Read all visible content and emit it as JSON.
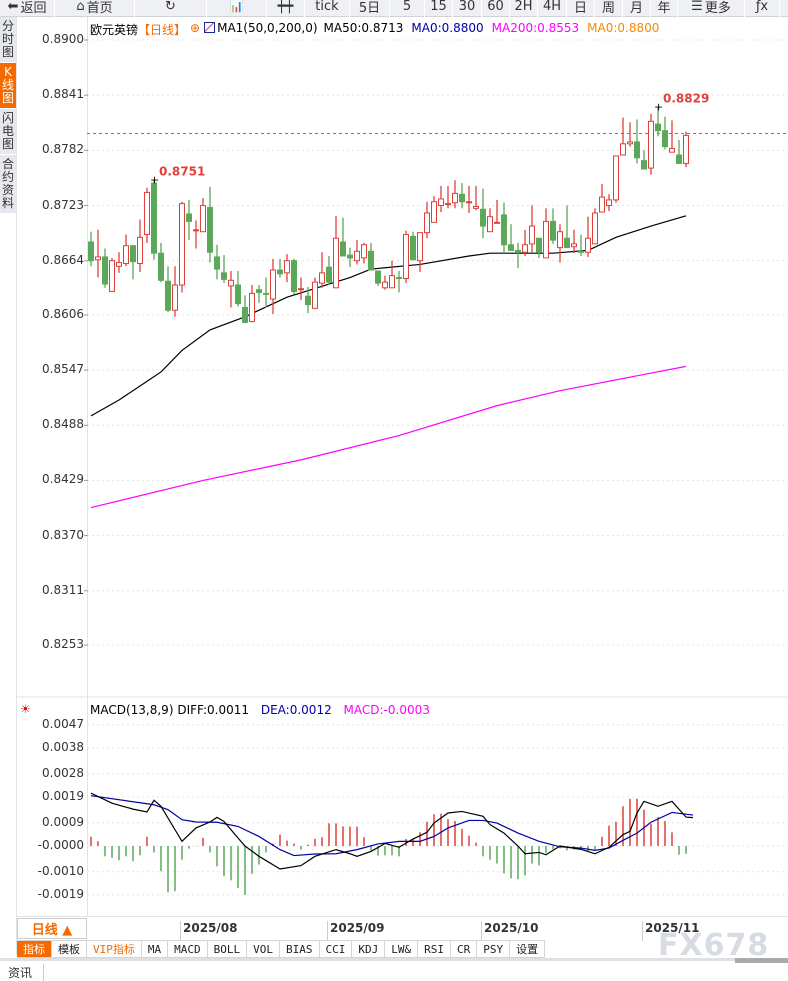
{
  "toolbar": {
    "items": [
      {
        "label": "返回",
        "icon": "back-arrow-icon",
        "w": 55
      },
      {
        "label": "首页",
        "icon": "home-icon",
        "w": 80
      },
      {
        "label": "",
        "icon": "refresh-icon",
        "w": 72
      },
      {
        "label": "",
        "icon": "bar-chart-icon",
        "w": 60
      },
      {
        "label": "",
        "icon": "candlestick-icon",
        "w": 38
      },
      {
        "label": "tick",
        "icon": "",
        "w": 45
      },
      {
        "label": "5日",
        "icon": "",
        "w": 40
      },
      {
        "label": "5",
        "icon": "",
        "w": 35
      },
      {
        "label": "15",
        "icon": "",
        "w": 28
      },
      {
        "label": "30",
        "icon": "",
        "w": 29
      },
      {
        "label": "60",
        "icon": "",
        "w": 28
      },
      {
        "label": "2H",
        "icon": "",
        "w": 28
      },
      {
        "label": "4H",
        "icon": "",
        "w": 29
      },
      {
        "label": "日",
        "icon": "",
        "w": 28
      },
      {
        "label": "周",
        "icon": "",
        "w": 28
      },
      {
        "label": "月",
        "icon": "",
        "w": 28
      },
      {
        "label": "年",
        "icon": "",
        "w": 27
      },
      {
        "label": "更多",
        "icon": "menu-icon",
        "w": 67
      },
      {
        "label": "",
        "icon": "fx-icon",
        "w": 35
      }
    ]
  },
  "left_tabs": [
    {
      "label": "分时图"
    },
    {
      "label": "K线图",
      "active": true
    },
    {
      "label": "闪电图"
    },
    {
      "label": "合约资料"
    }
  ],
  "legend": {
    "symbol": "欧元英镑",
    "period": "【日线】",
    "ma_name": "MA1(50,0,200,0)",
    "ma50": "MA50:0.8713",
    "ma0a": "MA0:0.8800",
    "ma200": "MA200:0.8553",
    "ma0b": "MA0:0.8800"
  },
  "macd_legend": {
    "name": "MACD(13,8,9)",
    "diff": "DIFF:0.0011",
    "dea": "DEA:0.0012",
    "macd": "MACD:-0.0003"
  },
  "colors": {
    "up": "#e0403a",
    "down": "#5ba85a",
    "ma50": "#000000",
    "ma200": "#ff00ff",
    "ma0_line": "#1e90ff",
    "dea": "#0000aa",
    "diff": "#000000",
    "accent": "#f56a00",
    "high_label": "#e0403a"
  },
  "chart_data": [
    {
      "type": "candlestick",
      "title": "欧元英镑",
      "period": "日线",
      "y_ticks": [
        "0.8900",
        "0.8841",
        "0.8782",
        "0.8723",
        "0.8664",
        "0.8606",
        "0.8547",
        "0.8488",
        "0.8429",
        "0.8370",
        "0.8311",
        "0.8253"
      ],
      "ylim": [
        0.8253,
        0.89
      ],
      "x_labels": [
        {
          "index": 13,
          "label": "2025/08"
        },
        {
          "index": 34,
          "label": "2025/09"
        },
        {
          "index": 56,
          "label": "2025/10"
        },
        {
          "index": 79,
          "label": "2025/11"
        }
      ],
      "ohlc": [
        [
          0.8684,
          0.8695,
          0.8658,
          0.8664
        ],
        [
          0.8665,
          0.8697,
          0.8646,
          0.8668
        ],
        [
          0.8668,
          0.8677,
          0.8635,
          0.8639
        ],
        [
          0.8631,
          0.8667,
          0.8631,
          0.8664
        ],
        [
          0.8658,
          0.8673,
          0.8651,
          0.8662
        ],
        [
          0.8661,
          0.8692,
          0.8658,
          0.868
        ],
        [
          0.868,
          0.8681,
          0.8644,
          0.8663
        ],
        [
          0.8661,
          0.8708,
          0.8652,
          0.8689
        ],
        [
          0.8692,
          0.8742,
          0.8683,
          0.8737
        ],
        [
          0.8747,
          0.8751,
          0.8665,
          0.8672
        ],
        [
          0.8672,
          0.8683,
          0.8641,
          0.8643
        ],
        [
          0.8642,
          0.8658,
          0.8609,
          0.8611
        ],
        [
          0.8611,
          0.8658,
          0.8604,
          0.8638
        ],
        [
          0.8638,
          0.8727,
          0.863,
          0.8725
        ],
        [
          0.8714,
          0.8729,
          0.8686,
          0.8706
        ],
        [
          0.8696,
          0.8707,
          0.8677,
          0.8697
        ],
        [
          0.8695,
          0.8731,
          0.8695,
          0.8723
        ],
        [
          0.8721,
          0.8743,
          0.8662,
          0.8673
        ],
        [
          0.8668,
          0.8681,
          0.8644,
          0.8655
        ],
        [
          0.8651,
          0.867,
          0.864,
          0.8644
        ],
        [
          0.8637,
          0.8653,
          0.8614,
          0.8643
        ],
        [
          0.8638,
          0.8653,
          0.8615,
          0.8618
        ],
        [
          0.8614,
          0.8627,
          0.8597,
          0.8598
        ],
        [
          0.8599,
          0.8638,
          0.8598,
          0.8629
        ],
        [
          0.8633,
          0.8638,
          0.8619,
          0.863
        ],
        [
          0.8629,
          0.8646,
          0.8614,
          0.8628
        ],
        [
          0.8623,
          0.8666,
          0.8607,
          0.8654
        ],
        [
          0.8654,
          0.8666,
          0.8646,
          0.865
        ],
        [
          0.8651,
          0.8671,
          0.8641,
          0.8664
        ],
        [
          0.8664,
          0.8666,
          0.8628,
          0.8631
        ],
        [
          0.8633,
          0.8646,
          0.8622,
          0.8634
        ],
        [
          0.8626,
          0.8636,
          0.8608,
          0.8617
        ],
        [
          0.8613,
          0.8646,
          0.8613,
          0.8641
        ],
        [
          0.864,
          0.8673,
          0.8635,
          0.8651
        ],
        [
          0.8657,
          0.8669,
          0.8638,
          0.8641
        ],
        [
          0.8635,
          0.8712,
          0.8635,
          0.8688
        ],
        [
          0.8684,
          0.871,
          0.8669,
          0.8669
        ],
        [
          0.867,
          0.8678,
          0.8657,
          0.8667
        ],
        [
          0.8664,
          0.8686,
          0.866,
          0.8674
        ],
        [
          0.8667,
          0.8683,
          0.8661,
          0.8681
        ],
        [
          0.8674,
          0.8683,
          0.8654,
          0.8654
        ],
        [
          0.8653,
          0.8653,
          0.8637,
          0.864
        ],
        [
          0.8635,
          0.8648,
          0.8633,
          0.8641
        ],
        [
          0.8635,
          0.8664,
          0.8635,
          0.8648
        ],
        [
          0.8646,
          0.8653,
          0.863,
          0.8645
        ],
        [
          0.8645,
          0.8696,
          0.864,
          0.8692
        ],
        [
          0.869,
          0.8695,
          0.8665,
          0.8665
        ],
        [
          0.8664,
          0.8694,
          0.8652,
          0.8694
        ],
        [
          0.8694,
          0.8727,
          0.8688,
          0.8715
        ],
        [
          0.8705,
          0.8733,
          0.8705,
          0.8727
        ],
        [
          0.8723,
          0.8744,
          0.8716,
          0.873
        ],
        [
          0.8724,
          0.8744,
          0.872,
          0.8725
        ],
        [
          0.8726,
          0.875,
          0.872,
          0.8736
        ],
        [
          0.8735,
          0.8747,
          0.872,
          0.8727
        ],
        [
          0.8726,
          0.8744,
          0.8715,
          0.8727
        ],
        [
          0.872,
          0.8744,
          0.8718,
          0.8722
        ],
        [
          0.8719,
          0.8741,
          0.8688,
          0.8701
        ],
        [
          0.8695,
          0.872,
          0.8695,
          0.8711
        ],
        [
          0.8704,
          0.8729,
          0.8704,
          0.8705
        ],
        [
          0.8713,
          0.8726,
          0.8672,
          0.8681
        ],
        [
          0.8681,
          0.8703,
          0.8675,
          0.8675
        ],
        [
          0.8675,
          0.8683,
          0.8656,
          0.8673
        ],
        [
          0.8673,
          0.8697,
          0.8669,
          0.8681
        ],
        [
          0.8682,
          0.8723,
          0.8673,
          0.8701
        ],
        [
          0.8688,
          0.8688,
          0.8667,
          0.8673
        ],
        [
          0.8667,
          0.872,
          0.8667,
          0.8706
        ],
        [
          0.8706,
          0.872,
          0.8682,
          0.8686
        ],
        [
          0.8678,
          0.8703,
          0.8662,
          0.8695
        ],
        [
          0.8688,
          0.8723,
          0.8678,
          0.8678
        ],
        [
          0.8679,
          0.8697,
          0.8672,
          0.8682
        ],
        [
          0.8674,
          0.8692,
          0.8669,
          0.8673
        ],
        [
          0.8673,
          0.8711,
          0.8668,
          0.8688
        ],
        [
          0.8682,
          0.872,
          0.8682,
          0.8715
        ],
        [
          0.8716,
          0.8746,
          0.8716,
          0.8732
        ],
        [
          0.8723,
          0.8735,
          0.8717,
          0.8729
        ],
        [
          0.8729,
          0.8776,
          0.8726,
          0.8776
        ],
        [
          0.8777,
          0.8817,
          0.8777,
          0.8789
        ],
        [
          0.8789,
          0.8812,
          0.8786,
          0.8791
        ],
        [
          0.8791,
          0.8815,
          0.8768,
          0.8774
        ],
        [
          0.8771,
          0.8782,
          0.8762,
          0.8762
        ],
        [
          0.8763,
          0.8821,
          0.8756,
          0.8813
        ],
        [
          0.881,
          0.8829,
          0.8797,
          0.8803
        ],
        [
          0.8803,
          0.8818,
          0.8783,
          0.8786
        ],
        [
          0.878,
          0.8814,
          0.878,
          0.8784
        ],
        [
          0.8777,
          0.8793,
          0.8768,
          0.8768
        ],
        [
          0.8768,
          0.8802,
          0.8764,
          0.8798
        ]
      ],
      "ma50": [
        [
          0,
          0.8498
        ],
        [
          4,
          0.8515
        ],
        [
          10,
          0.8545
        ],
        [
          13,
          0.8568
        ],
        [
          17,
          0.859
        ],
        [
          22,
          0.8604
        ],
        [
          28,
          0.8625
        ],
        [
          37,
          0.8646
        ],
        [
          40,
          0.8655
        ],
        [
          47,
          0.866
        ],
        [
          54,
          0.8669
        ],
        [
          57,
          0.8672
        ],
        [
          66,
          0.8672
        ],
        [
          71,
          0.8675
        ],
        [
          75,
          0.8689
        ],
        [
          80,
          0.8701
        ],
        [
          85,
          0.8712
        ]
      ],
      "ma200": [
        [
          0,
          0.84
        ],
        [
          16,
          0.8429
        ],
        [
          30,
          0.8451
        ],
        [
          44,
          0.8477
        ],
        [
          58,
          0.8509
        ],
        [
          67,
          0.8525
        ],
        [
          85,
          0.8551
        ]
      ],
      "ma0_level": 0.88,
      "high_labels": [
        {
          "index": 9,
          "label": "0.8751"
        },
        {
          "index": 81,
          "label": "0.8829"
        }
      ]
    },
    {
      "type": "macd",
      "name": "MACD(13,8,9)",
      "y_ticks": [
        "0.0047",
        "0.0038",
        "0.0028",
        "0.0019",
        "0.0009",
        "-0.0000",
        "-0.0010",
        "-0.0019"
      ],
      "ylim": [
        -0.0019,
        0.0047
      ],
      "hist": [
        0.00036,
        0.00018,
        -0.0004,
        -0.00046,
        -0.00055,
        -0.0004,
        -0.00059,
        -0.00036,
        0.00036,
        -0.00025,
        -0.00098,
        -0.00179,
        -0.00175,
        -0.00053,
        -0.0001,
        -1e-05,
        0.00032,
        -0.00025,
        -0.00079,
        -0.00117,
        -0.00133,
        -0.00163,
        -0.0019,
        -0.00108,
        -0.00072,
        -0.00025,
        9e-05,
        0.00044,
        0.00021,
        9e-05,
        -0.00014,
        5e-05,
        0.00028,
        0.00034,
        0.00088,
        0.00088,
        0.00076,
        0.00075,
        0.00075,
        0.00034,
        -0.00017,
        -0.00037,
        -0.00036,
        -0.00036,
        -0.0004,
        0.00027,
        0.00027,
        0.00053,
        0.00094,
        0.00123,
        0.00125,
        0.00104,
        0.00097,
        0.00066,
        0.0004,
        0.00013,
        -0.0004,
        -0.00053,
        -0.00068,
        -0.00106,
        -0.00126,
        -0.00129,
        -0.00114,
        -0.00068,
        -0.00075,
        -0.00027,
        -0.00012,
        -9e-05,
        -0.00017,
        -0.00014,
        -0.00014,
        -0.00021,
        -0.00014,
        0.00036,
        0.00079,
        0.00094,
        0.00154,
        0.00183,
        0.00183,
        0.00141,
        0.00086,
        0.00112,
        0.00097,
        0.00053,
        -0.00034,
        -0.0003
      ],
      "diff": [
        [
          0,
          0.00205
        ],
        [
          3,
          0.00166
        ],
        [
          6,
          0.00143
        ],
        [
          8,
          0.00132
        ],
        [
          9,
          0.00177
        ],
        [
          10,
          0.00154
        ],
        [
          12,
          0.00063
        ],
        [
          13,
          0.00018
        ],
        [
          15,
          0.0007
        ],
        [
          17,
          0.00093
        ],
        [
          18,
          0.00111
        ],
        [
          19,
          0.00095
        ],
        [
          21,
          0.00031
        ],
        [
          22,
          0
        ],
        [
          24,
          -0.0004
        ],
        [
          27,
          -0.00089
        ],
        [
          30,
          -0.00076
        ],
        [
          32,
          -0.0004
        ],
        [
          35,
          -0.00014
        ],
        [
          37,
          -0.0003
        ],
        [
          38,
          -0.0004
        ],
        [
          40,
          -0.00021
        ],
        [
          42,
          0.0001
        ],
        [
          44,
          -5e-05
        ],
        [
          46,
          0.00027
        ],
        [
          48,
          0.00053
        ],
        [
          49,
          0.00089
        ],
        [
          51,
          0.00128
        ],
        [
          53,
          0.00134
        ],
        [
          56,
          0.00115
        ],
        [
          57,
          0.00083
        ],
        [
          59,
          0.0005
        ],
        [
          61,
          0
        ],
        [
          62,
          -0.0003
        ],
        [
          64,
          -0.00025
        ],
        [
          65,
          -0.00034
        ],
        [
          67,
          0
        ],
        [
          70,
          -0.00013
        ],
        [
          72,
          -0.0003
        ],
        [
          74,
          -5e-05
        ],
        [
          76,
          0.00044
        ],
        [
          77,
          0.00057
        ],
        [
          78,
          0.00128
        ],
        [
          79,
          0.00173
        ],
        [
          81,
          0.00154
        ],
        [
          83,
          0.00173
        ],
        [
          85,
          0.00112
        ],
        [
          86,
          0.0011
        ]
      ],
      "dea": [
        [
          0,
          0.00195
        ],
        [
          9,
          0.0016
        ],
        [
          11,
          0.00141
        ],
        [
          13,
          0.00102
        ],
        [
          15,
          0.00093
        ],
        [
          18,
          0.00092
        ],
        [
          21,
          0.00076
        ],
        [
          24,
          0.00037
        ],
        [
          27,
          -0.00014
        ],
        [
          29,
          -0.00037
        ],
        [
          32,
          -0.00031
        ],
        [
          35,
          -0.0003
        ],
        [
          38,
          -0.00014
        ],
        [
          41,
          8e-05
        ],
        [
          44,
          0.00018
        ],
        [
          47,
          0.00018
        ],
        [
          49,
          0.00037
        ],
        [
          51,
          0.0007
        ],
        [
          54,
          0.00099
        ],
        [
          56,
          0.00099
        ],
        [
          58,
          0.00089
        ],
        [
          61,
          0.0005
        ],
        [
          64,
          0.00018
        ],
        [
          67,
          -3e-05
        ],
        [
          70,
          -8e-05
        ],
        [
          72,
          -0.00017
        ],
        [
          74,
          -8e-05
        ],
        [
          76,
          0.00022
        ],
        [
          78,
          0.0005
        ],
        [
          80,
          0.00092
        ],
        [
          83,
          0.0013
        ],
        [
          86,
          0.0012
        ]
      ]
    }
  ],
  "range_button": "日线 ▲",
  "bottom_tabs": [
    {
      "label": "指标",
      "active": true
    },
    {
      "label": "模板"
    },
    {
      "label": "VIP指标",
      "vip": true
    },
    {
      "label": "MA"
    },
    {
      "label": "MACD"
    },
    {
      "label": "BOLL"
    },
    {
      "label": "VOL"
    },
    {
      "label": "BIAS"
    },
    {
      "label": "CCI"
    },
    {
      "label": "KDJ"
    },
    {
      "label": "LW&"
    },
    {
      "label": "RSI"
    },
    {
      "label": "CR"
    },
    {
      "label": "PSY"
    },
    {
      "label": "设置"
    }
  ],
  "watermark": "FX678",
  "news_tab": "资讯"
}
